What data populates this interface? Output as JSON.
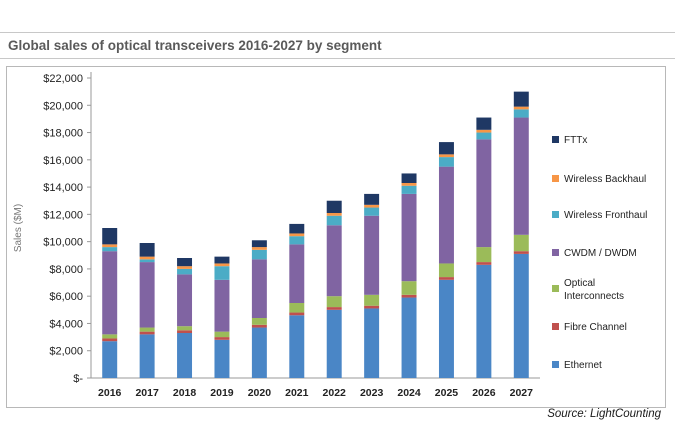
{
  "chart_data": {
    "type": "bar",
    "stacked": true,
    "title": "Global sales of optical transceivers 2016-2027 by segment",
    "ylabel": "Sales ($M)",
    "xlabel": "",
    "ylim": [
      0,
      22000
    ],
    "yticks": [
      0,
      2000,
      4000,
      6000,
      8000,
      10000,
      12000,
      14000,
      16000,
      18000,
      20000,
      22000
    ],
    "ytick_labels": [
      "$-",
      "$2,000",
      "$4,000",
      "$6,000",
      "$8,000",
      "$10,000",
      "$12,000",
      "$14,000",
      "$16,000",
      "$18,000",
      "$20,000",
      "$22,000"
    ],
    "grid": false,
    "legend_position": "right",
    "categories": [
      "2016",
      "2017",
      "2018",
      "2019",
      "2020",
      "2021",
      "2022",
      "2023",
      "2024",
      "2025",
      "2026",
      "2027"
    ],
    "series": [
      {
        "name": "Ethernet",
        "color": "#4a86c6",
        "values": [
          2700,
          3200,
          3300,
          2800,
          3700,
          4600,
          5000,
          5100,
          5900,
          7200,
          8300,
          9100
        ]
      },
      {
        "name": "Fibre Channel",
        "color": "#c0504d",
        "values": [
          200,
          200,
          200,
          200,
          200,
          200,
          200,
          200,
          200,
          200,
          200,
          200
        ]
      },
      {
        "name": "Optical Interconnects",
        "color": "#9bbb59",
        "values": [
          300,
          300,
          300,
          400,
          500,
          700,
          800,
          800,
          1000,
          1000,
          1100,
          1200
        ]
      },
      {
        "name": "CWDM / DWDM",
        "color": "#8064a2",
        "values": [
          6100,
          4800,
          3800,
          3800,
          4300,
          4300,
          5200,
          5800,
          6400,
          7100,
          7900,
          8600
        ]
      },
      {
        "name": "Wireless Fronthaul",
        "color": "#4bacc6",
        "values": [
          300,
          200,
          400,
          1000,
          700,
          600,
          700,
          600,
          600,
          700,
          500,
          600
        ]
      },
      {
        "name": "Wireless Backhaul",
        "color": "#f79646",
        "values": [
          200,
          200,
          200,
          200,
          200,
          200,
          200,
          200,
          200,
          200,
          200,
          200
        ]
      },
      {
        "name": "FTTx",
        "color": "#1f3864",
        "values": [
          1200,
          1000,
          600,
          500,
          500,
          700,
          900,
          800,
          700,
          900,
          900,
          1100
        ]
      }
    ]
  },
  "source": "Source: LightCounting"
}
